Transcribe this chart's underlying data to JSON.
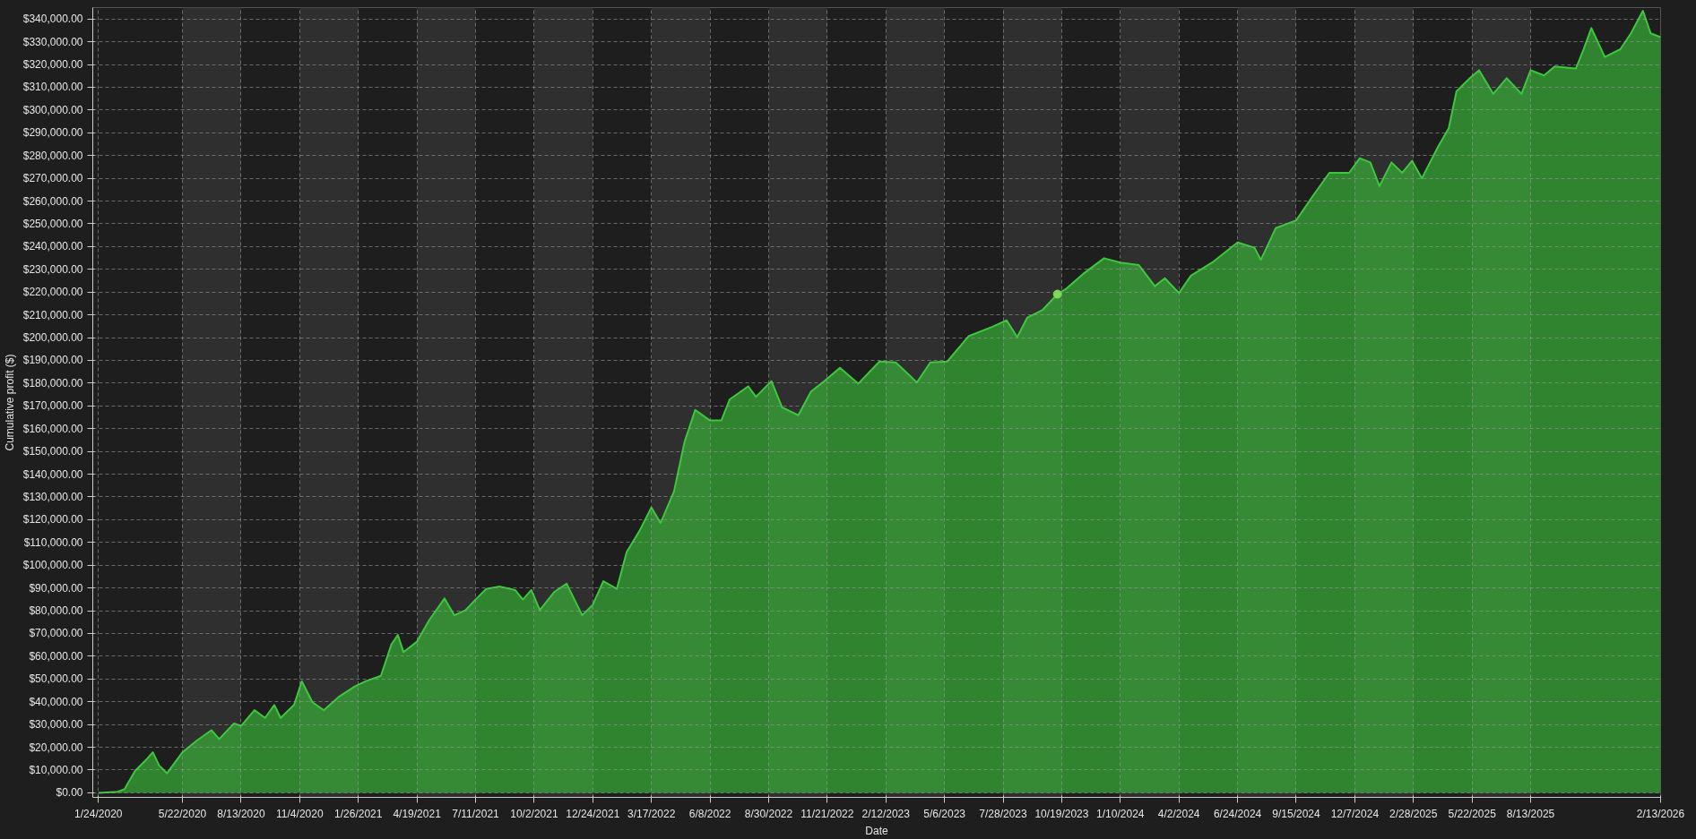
{
  "chart_data": {
    "type": "area",
    "xlabel": "Date",
    "ylabel": "Cumulative profit ($)",
    "xlim": [
      "2020-01-16",
      "2026-02-13"
    ],
    "ylim": [
      -2000,
      345000
    ],
    "xticks": [
      {
        "value": "2020-01-24",
        "label": "1/24/2020"
      },
      {
        "value": "2020-05-22",
        "label": "5/22/2020"
      },
      {
        "value": "2020-08-13",
        "label": "8/13/2020"
      },
      {
        "value": "2020-11-04",
        "label": "11/4/2020"
      },
      {
        "value": "2021-01-26",
        "label": "1/26/2021"
      },
      {
        "value": "2021-04-19",
        "label": "4/19/2021"
      },
      {
        "value": "2021-07-11",
        "label": "7/11/2021"
      },
      {
        "value": "2021-10-02",
        "label": "10/2/2021"
      },
      {
        "value": "2021-12-24",
        "label": "12/24/2021"
      },
      {
        "value": "2022-03-17",
        "label": "3/17/2022"
      },
      {
        "value": "2022-06-08",
        "label": "6/8/2022"
      },
      {
        "value": "2022-08-30",
        "label": "8/30/2022"
      },
      {
        "value": "2022-11-21",
        "label": "11/21/2022"
      },
      {
        "value": "2023-02-12",
        "label": "2/12/2023"
      },
      {
        "value": "2023-05-06",
        "label": "5/6/2023"
      },
      {
        "value": "2023-07-28",
        "label": "7/28/2023"
      },
      {
        "value": "2023-10-19",
        "label": "10/19/2023"
      },
      {
        "value": "2024-01-10",
        "label": "1/10/2024"
      },
      {
        "value": "2024-04-02",
        "label": "4/2/2024"
      },
      {
        "value": "2024-06-24",
        "label": "6/24/2024"
      },
      {
        "value": "2024-09-15",
        "label": "9/15/2024"
      },
      {
        "value": "2024-12-07",
        "label": "12/7/2024"
      },
      {
        "value": "2025-02-28",
        "label": "2/28/2025"
      },
      {
        "value": "2025-05-22",
        "label": "5/22/2025"
      },
      {
        "value": "2025-08-13",
        "label": "8/13/2025"
      },
      {
        "value": "2026-02-13",
        "label": "2/13/2026"
      }
    ],
    "yticks": [
      {
        "value": 0,
        "label": "$0.00"
      },
      {
        "value": 10000,
        "label": "$10,000.00"
      },
      {
        "value": 20000,
        "label": "$20,000.00"
      },
      {
        "value": 30000,
        "label": "$30,000.00"
      },
      {
        "value": 40000,
        "label": "$40,000.00"
      },
      {
        "value": 50000,
        "label": "$50,000.00"
      },
      {
        "value": 60000,
        "label": "$60,000.00"
      },
      {
        "value": 70000,
        "label": "$70,000.00"
      },
      {
        "value": 80000,
        "label": "$80,000.00"
      },
      {
        "value": 90000,
        "label": "$90,000.00"
      },
      {
        "value": 100000,
        "label": "$100,000.00"
      },
      {
        "value": 110000,
        "label": "$110,000.00"
      },
      {
        "value": 120000,
        "label": "$120,000.00"
      },
      {
        "value": 130000,
        "label": "$130,000.00"
      },
      {
        "value": 140000,
        "label": "$140,000.00"
      },
      {
        "value": 150000,
        "label": "$150,000.00"
      },
      {
        "value": 160000,
        "label": "$160,000.00"
      },
      {
        "value": 170000,
        "label": "$170,000.00"
      },
      {
        "value": 180000,
        "label": "$180,000.00"
      },
      {
        "value": 190000,
        "label": "$190,000.00"
      },
      {
        "value": 200000,
        "label": "$200,000.00"
      },
      {
        "value": 210000,
        "label": "$210,000.00"
      },
      {
        "value": 220000,
        "label": "$220,000.00"
      },
      {
        "value": 230000,
        "label": "$230,000.00"
      },
      {
        "value": 240000,
        "label": "$240,000.00"
      },
      {
        "value": 250000,
        "label": "$250,000.00"
      },
      {
        "value": 260000,
        "label": "$260,000.00"
      },
      {
        "value": 270000,
        "label": "$270,000.00"
      },
      {
        "value": 280000,
        "label": "$280,000.00"
      },
      {
        "value": 290000,
        "label": "$290,000.00"
      },
      {
        "value": 300000,
        "label": "$300,000.00"
      },
      {
        "value": 310000,
        "label": "$310,000.00"
      },
      {
        "value": 320000,
        "label": "$320,000.00"
      },
      {
        "value": 330000,
        "label": "$330,000.00"
      },
      {
        "value": 340000,
        "label": "$340,000.00"
      }
    ],
    "grid": true,
    "bands": [
      {
        "axis": "x",
        "from": "2020-05-22",
        "to": "2020-08-13",
        "color": "#2f2f2f"
      },
      {
        "axis": "x",
        "from": "2020-11-04",
        "to": "2021-01-26",
        "color": "#2f2f2f"
      },
      {
        "axis": "x",
        "from": "2021-04-19",
        "to": "2021-07-11",
        "color": "#2f2f2f"
      },
      {
        "axis": "x",
        "from": "2021-10-02",
        "to": "2021-12-24",
        "color": "#2f2f2f"
      },
      {
        "axis": "x",
        "from": "2022-03-17",
        "to": "2022-06-08",
        "color": "#2f2f2f"
      },
      {
        "axis": "x",
        "from": "2022-08-30",
        "to": "2022-11-21",
        "color": "#2f2f2f"
      },
      {
        "axis": "x",
        "from": "2023-02-12",
        "to": "2023-05-06",
        "color": "#2f2f2f"
      },
      {
        "axis": "x",
        "from": "2023-07-28",
        "to": "2023-10-19",
        "color": "#2f2f2f"
      },
      {
        "axis": "x",
        "from": "2024-01-10",
        "to": "2024-04-02",
        "color": "#2f2f2f"
      },
      {
        "axis": "x",
        "from": "2024-06-24",
        "to": "2024-09-15",
        "color": "#2f2f2f"
      },
      {
        "axis": "x",
        "from": "2024-12-07",
        "to": "2025-02-28",
        "color": "#2f2f2f"
      },
      {
        "axis": "x",
        "from": "2025-05-22",
        "to": "2025-08-13",
        "color": "#2f2f2f"
      }
    ],
    "x": [
      "2020-01-24",
      "2020-02-20",
      "2020-03-01",
      "2020-03-16",
      "2020-03-31",
      "2020-04-10",
      "2020-04-19",
      "2020-04-30",
      "2020-05-11",
      "2020-05-22",
      "2020-06-11",
      "2020-07-02",
      "2020-07-13",
      "2020-08-03",
      "2020-08-13",
      "2020-09-01",
      "2020-09-16",
      "2020-09-29",
      "2020-10-08",
      "2020-10-27",
      "2020-11-07",
      "2020-11-22",
      "2020-12-08",
      "2020-12-29",
      "2021-01-21",
      "2021-02-05",
      "2021-02-27",
      "2021-03-14",
      "2021-03-23",
      "2021-03-31",
      "2021-04-19",
      "2021-05-06",
      "2021-05-28",
      "2021-06-11",
      "2021-06-27",
      "2021-07-11",
      "2021-07-26",
      "2021-08-14",
      "2021-09-05",
      "2021-09-16",
      "2021-09-28",
      "2021-10-10",
      "2021-10-31",
      "2021-11-17",
      "2021-12-09",
      "2021-12-24",
      "2022-01-08",
      "2022-01-27",
      "2022-02-10",
      "2022-02-28",
      "2022-03-17",
      "2022-03-30",
      "2022-04-18",
      "2022-05-03",
      "2022-05-18",
      "2022-06-08",
      "2022-06-24",
      "2022-07-06",
      "2022-08-01",
      "2022-08-12",
      "2022-09-03",
      "2022-09-18",
      "2022-10-11",
      "2022-10-29",
      "2022-11-17",
      "2022-12-09",
      "2023-01-04",
      "2023-02-03",
      "2023-02-26",
      "2023-03-28",
      "2023-04-16",
      "2023-05-10",
      "2023-06-09",
      "2023-07-13",
      "2023-08-02",
      "2023-08-17",
      "2023-08-31",
      "2023-09-22",
      "2023-10-13",
      "2023-10-25",
      "2023-11-20",
      "2023-12-18",
      "2024-01-10",
      "2024-02-05",
      "2024-02-28",
      "2024-03-13",
      "2024-04-02",
      "2024-04-19",
      "2024-05-19",
      "2024-06-24",
      "2024-07-18",
      "2024-07-27",
      "2024-08-17",
      "2024-09-15",
      "2024-10-08",
      "2024-11-01",
      "2024-11-29",
      "2024-12-14",
      "2024-12-29",
      "2025-01-11",
      "2025-01-28",
      "2025-02-12",
      "2025-02-26",
      "2025-03-12",
      "2025-04-04",
      "2025-04-19",
      "2025-04-30",
      "2025-05-19",
      "2025-06-01",
      "2025-06-21",
      "2025-07-10",
      "2025-07-31",
      "2025-08-13",
      "2025-09-01",
      "2025-09-16",
      "2025-10-16",
      "2025-10-27",
      "2025-11-07",
      "2025-11-26",
      "2025-12-18",
      "2026-01-02",
      "2026-01-19",
      "2026-01-30",
      "2026-02-13"
    ],
    "series": [
      {
        "color": "#3cc83c",
        "values": [
          0,
          500,
          1600,
          9700,
          14300,
          17800,
          12000,
          8600,
          13200,
          17800,
          22900,
          27500,
          23600,
          30500,
          29400,
          36300,
          32900,
          38600,
          32900,
          38600,
          49000,
          39800,
          36300,
          42100,
          46700,
          49000,
          51400,
          65300,
          69400,
          61800,
          66400,
          75700,
          85400,
          78000,
          80300,
          84900,
          89600,
          90700,
          89100,
          84900,
          89100,
          80300,
          88400,
          91900,
          78000,
          82600,
          93000,
          89600,
          105800,
          115000,
          125400,
          118500,
          132400,
          154300,
          168200,
          163600,
          163600,
          172900,
          178600,
          174000,
          180900,
          169400,
          165900,
          176300,
          180900,
          186700,
          179800,
          189500,
          189100,
          180300,
          189100,
          189500,
          200600,
          204800,
          207600,
          200200,
          208700,
          212200,
          219100,
          221400,
          228400,
          234900,
          233000,
          231900,
          222600,
          226100,
          219600,
          227200,
          233000,
          241800,
          239500,
          234200,
          248100,
          251500,
          262000,
          272400,
          272400,
          278800,
          277000,
          266600,
          277000,
          272400,
          277700,
          270000,
          283900,
          292000,
          308200,
          314000,
          317500,
          307100,
          314000,
          307100,
          317500,
          315200,
          319100,
          318200,
          326700,
          336000,
          323300,
          326700,
          333700,
          343600,
          333700,
          332000
        ]
      },
      {
        "type": "scatter",
        "color": "#7ed957",
        "x": [
          "2023-10-13"
        ],
        "values": [
          219100
        ]
      }
    ]
  }
}
